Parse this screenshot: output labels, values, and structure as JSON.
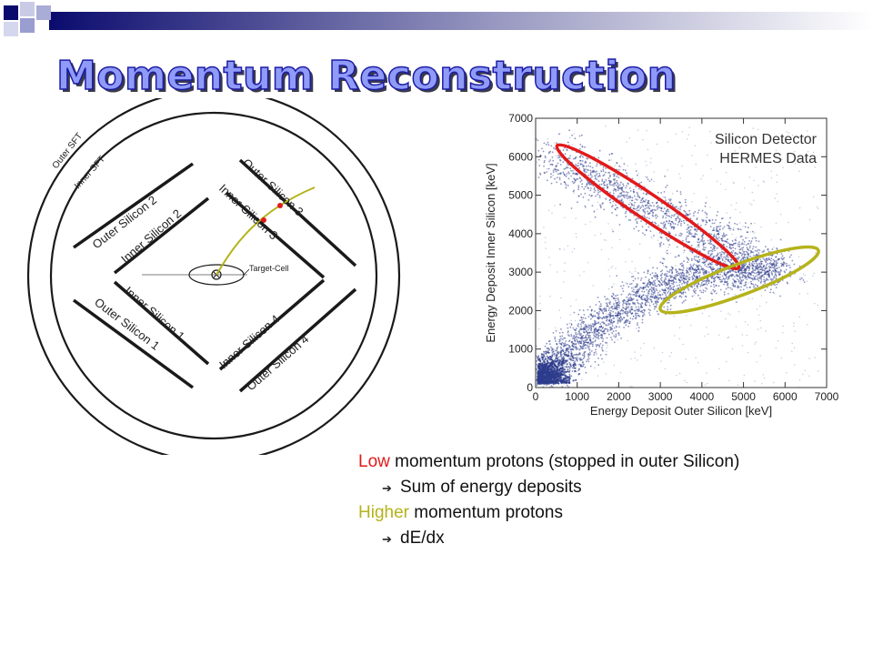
{
  "slide": {
    "title": "Momentum Reconstruction",
    "colors": {
      "header_dark": "#0b0b6e",
      "title_fill": "#8f9bf6",
      "title_stroke": "#1c1ca6",
      "low": "#e31a1a",
      "higher": "#b5b31b"
    }
  },
  "detector": {
    "labels": {
      "outer_sft": "Outer SFT",
      "inner_sft": "Inner SFT",
      "outer_silicon_1": "Outer Silicon 1",
      "outer_silicon_2": "Outer Silicon 2",
      "outer_silicon_3": "Outer Silicon 3",
      "outer_silicon_4": "Outer Silicon 4",
      "inner_silicon_1": "Inner Silicon 1",
      "inner_silicon_2": "Inner Silicon 2",
      "inner_silicon_3": "Inner Silicon 3",
      "inner_silicon_4": "Inner Silicon 4",
      "target_cell": "Target-Cell"
    }
  },
  "chart_data": {
    "type": "scatter",
    "annotation_lines": [
      "Silicon Detector",
      "HERMES Data"
    ],
    "xlabel": "Energy Deposit Outer Silicon [keV]",
    "ylabel": "Energy Deposit Inner Silicon [keV]",
    "xlim": [
      0,
      7000
    ],
    "ylim": [
      0,
      7000
    ],
    "xticks": [
      0,
      1000,
      2000,
      3000,
      4000,
      5000,
      6000,
      7000
    ],
    "yticks": [
      0,
      1000,
      2000,
      3000,
      4000,
      5000,
      6000,
      7000
    ],
    "point_color": "#2d3c8c",
    "density_bands": [
      {
        "name": "stopped-band",
        "points": [
          [
            300,
            6000
          ],
          [
            1500,
            5400
          ],
          [
            2500,
            4800
          ],
          [
            3500,
            4200
          ],
          [
            4500,
            3700
          ],
          [
            5500,
            3200
          ]
        ]
      },
      {
        "name": "punch-through-band",
        "points": [
          [
            100,
            300
          ],
          [
            600,
            700
          ],
          [
            1200,
            1300
          ],
          [
            2000,
            2000
          ],
          [
            3000,
            2600
          ],
          [
            4000,
            3000
          ],
          [
            5000,
            3100
          ],
          [
            6000,
            3050
          ]
        ]
      }
    ],
    "ellipses": [
      {
        "name": "low-momentum-ellipse",
        "color": "#e31a1a",
        "center": [
          2700,
          4700
        ],
        "semi_major": 2700,
        "semi_minor": 330,
        "angle_deg": -36
      },
      {
        "name": "higher-momentum-ellipse",
        "color": "#b5b31b",
        "center": [
          4900,
          2800
        ],
        "semi_major": 2050,
        "semi_minor": 400,
        "angle_deg": 22
      }
    ]
  },
  "notes": {
    "low_word": "Low",
    "low_rest": " momentum protons  (stopped in outer Silicon)",
    "low_sub": "Sum of energy deposits",
    "higher_word": "Higher",
    "higher_rest": " momentum protons",
    "higher_sub": "dE/dx",
    "arrow_glyph": "➔"
  }
}
